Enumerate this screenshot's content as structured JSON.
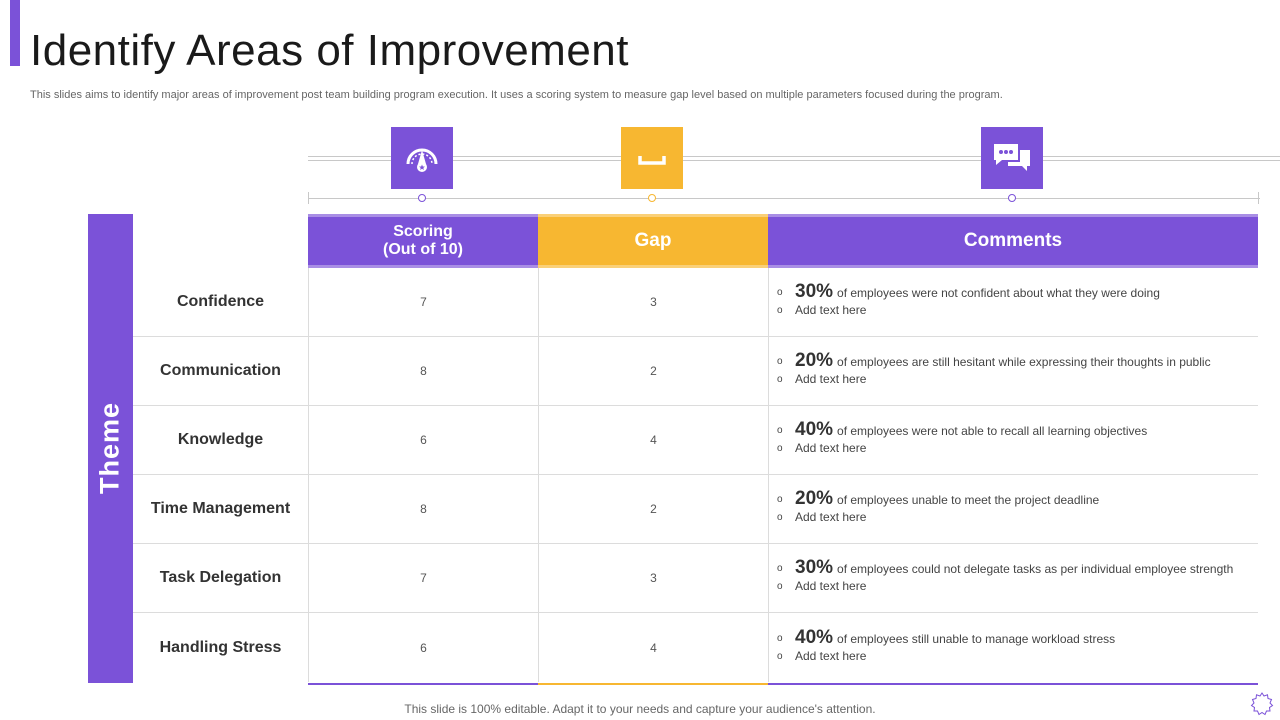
{
  "title": "Identify Areas of Improvement",
  "subtitle": "This slides aims to identify major areas of improvement post team building program execution. It uses a scoring system to measure gap level based on multiple parameters focused during the program.",
  "theme_label": "Theme",
  "headers": {
    "scoring": "Scoring\n(Out of 10)",
    "gap": "Gap",
    "comments": "Comments"
  },
  "icons": {
    "scoring": "speedometer-icon",
    "gap": "bracket-gap-icon",
    "comments": "chat-bubbles-icon"
  },
  "rows": [
    {
      "name": "Confidence",
      "score": "7",
      "gap": "3",
      "pct": "30%",
      "comment": "of employees were not confident about what they were doing",
      "extra": "Add text here"
    },
    {
      "name": "Communication",
      "score": "8",
      "gap": "2",
      "pct": "20%",
      "comment": "of employees are still hesitant while expressing their thoughts in public",
      "extra": "Add text here"
    },
    {
      "name": "Knowledge",
      "score": "6",
      "gap": "4",
      "pct": "40%",
      "comment": "of employees were not able to recall all learning objectives",
      "extra": "Add text here"
    },
    {
      "name": "Time Management",
      "score": "8",
      "gap": "2",
      "pct": "20%",
      "comment": "of employees unable to meet the project deadline",
      "extra": "Add text here"
    },
    {
      "name": "Task Delegation",
      "score": "7",
      "gap": "3",
      "pct": "30%",
      "comment": "of employees could not delegate tasks as per individual employee strength",
      "extra": "Add text here"
    },
    {
      "name": "Handling Stress",
      "score": "6",
      "gap": "4",
      "pct": "40%",
      "comment": "of employees still unable to manage workload stress",
      "extra": "Add text here"
    }
  ],
  "footer": "This slide is 100% editable. Adapt it to your needs and capture your audience's attention.",
  "colors": {
    "purple": "#7b52d8",
    "yellow": "#f7b731"
  }
}
